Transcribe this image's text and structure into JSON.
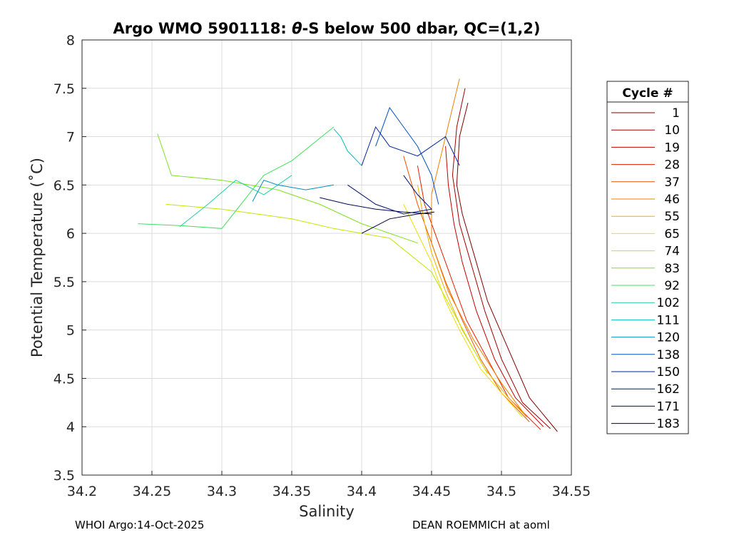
{
  "chart_data": {
    "type": "line",
    "title": "Argo WMO 5901118: θ-S below 500 dbar,  QC=(1,2)",
    "title_parts": {
      "prefix": "Argo WMO 5901118: ",
      "theta": "θ",
      "suffix": "-S below 500 dbar,  QC=(1,2)"
    },
    "xlabel": "Salinity",
    "ylabel": "Potential Temperature (˚C)",
    "xlim": [
      34.2,
      34.55
    ],
    "ylim": [
      3.5,
      8
    ],
    "xticks": [
      "34.2",
      "34.25",
      "34.3",
      "34.35",
      "34.4",
      "34.45",
      "34.5",
      "34.55"
    ],
    "yticks": [
      "3.5",
      "4",
      "4.5",
      "5",
      "5.5",
      "6",
      "6.5",
      "7",
      "7.5",
      "8"
    ],
    "grid": true,
    "legend": {
      "title": "Cycle #",
      "position": "right",
      "entries": [
        {
          "label": "1",
          "color": "#800000"
        },
        {
          "label": "10",
          "color": "#a30000"
        },
        {
          "label": "19",
          "color": "#c20000"
        },
        {
          "label": "28",
          "color": "#e02000"
        },
        {
          "label": "37",
          "color": "#f05000"
        },
        {
          "label": "46",
          "color": "#f08000"
        },
        {
          "label": "55",
          "color": "#f0b000"
        },
        {
          "label": "65",
          "color": "#f0e000"
        },
        {
          "label": "74",
          "color": "#c0e800"
        },
        {
          "label": "83",
          "color": "#80e020"
        },
        {
          "label": "92",
          "color": "#40e060"
        },
        {
          "label": "102",
          "color": "#20d0a0"
        },
        {
          "label": "111",
          "color": "#00c0c0"
        },
        {
          "label": "120",
          "color": "#0090c0"
        },
        {
          "label": "138",
          "color": "#0050c0"
        },
        {
          "label": "150",
          "color": "#0020a0"
        },
        {
          "label": "162",
          "color": "#001070"
        },
        {
          "label": "171",
          "color": "#000850"
        },
        {
          "label": "183",
          "color": "#000030"
        }
      ]
    },
    "series": [
      {
        "name": "1",
        "color": "#800000",
        "x": [
          34.476,
          34.47,
          34.468,
          34.472,
          34.48,
          34.49,
          34.505,
          34.52,
          34.54
        ],
        "y": [
          7.35,
          7.0,
          6.5,
          6.2,
          5.8,
          5.3,
          4.8,
          4.3,
          3.95
        ]
      },
      {
        "name": "10",
        "color": "#a30000",
        "x": [
          34.474,
          34.468,
          34.465,
          34.47,
          34.478,
          34.488,
          34.5,
          34.515,
          34.535
        ],
        "y": [
          7.5,
          7.1,
          6.6,
          6.1,
          5.7,
          5.2,
          4.7,
          4.25,
          3.98
        ]
      },
      {
        "name": "19",
        "color": "#c20000",
        "x": [
          34.46,
          34.462,
          34.466,
          34.472,
          34.482,
          34.495,
          34.51,
          34.53
        ],
        "y": [
          6.9,
          6.5,
          6.1,
          5.7,
          5.2,
          4.7,
          4.3,
          4.0
        ]
      },
      {
        "name": "28",
        "color": "#e02000",
        "x": [
          34.44,
          34.445,
          34.455,
          34.465,
          34.475,
          34.49,
          34.505,
          34.528
        ],
        "y": [
          6.7,
          6.3,
          5.9,
          5.5,
          5.1,
          4.7,
          4.3,
          3.97
        ]
      },
      {
        "name": "37",
        "color": "#f05000",
        "x": [
          34.43,
          34.44,
          34.45,
          34.46,
          34.472,
          34.485,
          34.5,
          34.52
        ],
        "y": [
          6.8,
          6.3,
          5.9,
          5.5,
          5.1,
          4.7,
          4.35,
          4.05
        ]
      },
      {
        "name": "46",
        "color": "#f08000",
        "x": [
          34.47,
          34.46,
          34.45,
          34.45,
          34.462,
          34.48,
          34.5,
          34.518
        ],
        "y": [
          7.6,
          7.0,
          6.4,
          5.9,
          5.4,
          4.9,
          4.45,
          4.1
        ]
      },
      {
        "name": "55",
        "color": "#f0b000",
        "x": [
          34.44,
          34.445,
          34.45,
          34.46,
          34.472,
          34.488,
          34.505,
          34.518
        ],
        "y": [
          6.5,
          6.1,
          5.8,
          5.4,
          5.0,
          4.6,
          4.3,
          4.1
        ]
      },
      {
        "name": "65",
        "color": "#f0e000",
        "x": [
          34.43,
          34.44,
          34.45,
          34.46,
          34.47,
          34.485,
          34.5,
          34.515
        ],
        "y": [
          6.3,
          6.0,
          5.7,
          5.3,
          5.0,
          4.6,
          4.35,
          4.1
        ]
      },
      {
        "name": "74",
        "color": "#c0e800",
        "x": [
          34.26,
          34.3,
          34.35,
          34.38,
          34.42,
          34.45,
          34.465,
          34.48,
          34.49
        ],
        "y": [
          6.3,
          6.25,
          6.15,
          6.05,
          5.95,
          5.6,
          5.2,
          4.8,
          4.55
        ]
      },
      {
        "name": "83",
        "color": "#80e020",
        "x": [
          34.254,
          34.264,
          34.3,
          34.34,
          34.37,
          34.4,
          34.44
        ],
        "y": [
          7.03,
          6.6,
          6.55,
          6.45,
          6.3,
          6.1,
          5.9
        ]
      },
      {
        "name": "92",
        "color": "#40e060",
        "x": [
          34.24,
          34.27,
          34.3,
          34.33,
          34.35,
          34.38
        ],
        "y": [
          6.1,
          6.08,
          6.05,
          6.6,
          6.75,
          7.1
        ]
      },
      {
        "name": "102",
        "color": "#20d0a0",
        "x": [
          34.27,
          34.29,
          34.31,
          34.33,
          34.35
        ],
        "y": [
          6.07,
          6.3,
          6.55,
          6.4,
          6.6
        ]
      },
      {
        "name": "111",
        "color": "#00c0c0",
        "x": [
          34.38,
          34.385,
          34.39,
          34.4
        ],
        "y": [
          7.08,
          7.0,
          6.85,
          6.7
        ]
      },
      {
        "name": "120",
        "color": "#0090c0",
        "x": [
          34.322,
          34.33,
          34.34,
          34.36,
          34.38
        ],
        "y": [
          6.33,
          6.55,
          6.5,
          6.45,
          6.5
        ]
      },
      {
        "name": "138",
        "color": "#0050c0",
        "x": [
          34.41,
          34.42,
          34.43,
          34.44,
          34.45,
          34.455
        ],
        "y": [
          6.9,
          7.3,
          7.1,
          6.9,
          6.6,
          6.3
        ]
      },
      {
        "name": "150",
        "color": "#0020a0",
        "x": [
          34.4,
          34.41,
          34.42,
          34.44,
          34.46,
          34.47
        ],
        "y": [
          6.7,
          7.1,
          6.9,
          6.8,
          7.0,
          6.7
        ]
      },
      {
        "name": "162",
        "color": "#001070",
        "x": [
          34.39,
          34.41,
          34.43,
          34.45,
          34.44,
          34.43
        ],
        "y": [
          6.5,
          6.3,
          6.2,
          6.25,
          6.4,
          6.6
        ]
      },
      {
        "name": "171",
        "color": "#000850",
        "x": [
          34.37,
          34.39,
          34.41,
          34.43,
          34.45
        ],
        "y": [
          6.37,
          6.3,
          6.25,
          6.22,
          6.2
        ]
      },
      {
        "name": "183",
        "color": "#000030",
        "x": [
          34.4,
          34.42,
          34.44,
          34.452
        ],
        "y": [
          6.0,
          6.15,
          6.2,
          6.22
        ]
      }
    ]
  },
  "footer": {
    "left": "WHOI Argo:14-Oct-2025",
    "right": "DEAN ROEMMICH at aoml"
  }
}
